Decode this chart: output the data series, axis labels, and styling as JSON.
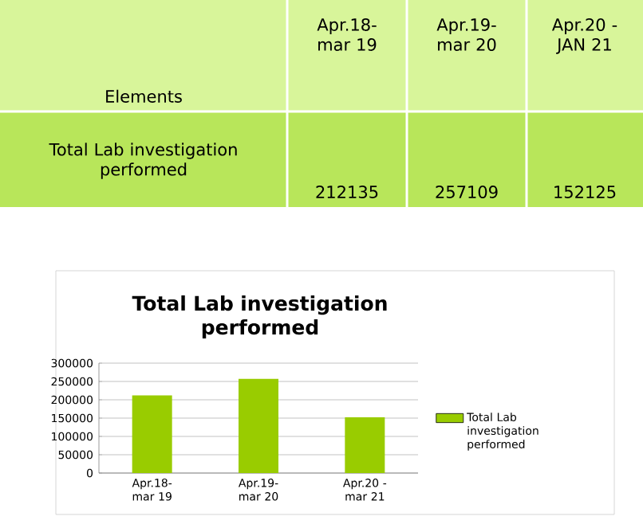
{
  "chart_data": {
    "type": "bar",
    "title": "Total Lab investigation performed",
    "categories": [
      "Apr.18- mar 19",
      "Apr.19- mar 20",
      "Apr.20 - mar 21"
    ],
    "series": [
      {
        "name": "Total Lab investigation performed",
        "color": "#99cc00",
        "values": [
          212135,
          257109,
          152125
        ]
      }
    ],
    "ylim": [
      0,
      300000
    ],
    "yticks": [
      0,
      50000,
      100000,
      150000,
      200000,
      250000,
      300000
    ],
    "grid": "y",
    "legend": "right",
    "annotations": [
      "Elements",
      "Apr.18-mar 19",
      "Apr.19-mar 20",
      "Apr.20 - JAN 21",
      "212135",
      "257109",
      "152125"
    ]
  }
}
